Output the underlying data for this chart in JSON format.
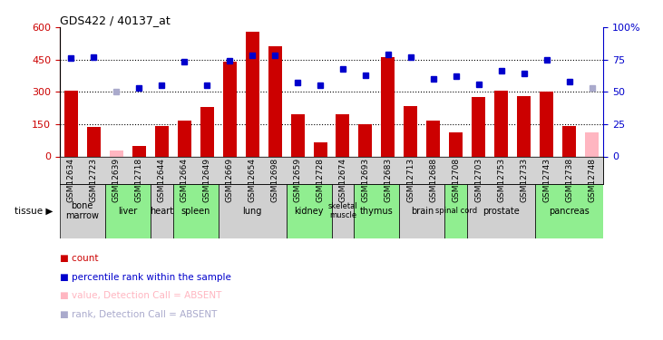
{
  "title": "GDS422 / 40137_at",
  "samples": [
    "GSM12634",
    "GSM12723",
    "GSM12639",
    "GSM12718",
    "GSM12644",
    "GSM12664",
    "GSM12649",
    "GSM12669",
    "GSM12654",
    "GSM12698",
    "GSM12659",
    "GSM12728",
    "GSM12674",
    "GSM12693",
    "GSM12683",
    "GSM12713",
    "GSM12688",
    "GSM12708",
    "GSM12703",
    "GSM12753",
    "GSM12733",
    "GSM12743",
    "GSM12738",
    "GSM12748"
  ],
  "bar_values": [
    305,
    135,
    28,
    48,
    140,
    165,
    230,
    440,
    580,
    510,
    195,
    65,
    195,
    150,
    460,
    235,
    165,
    110,
    275,
    305,
    280,
    300,
    140,
    110
  ],
  "bar_absent": [
    false,
    false,
    true,
    false,
    false,
    false,
    false,
    false,
    false,
    false,
    false,
    false,
    false,
    false,
    false,
    false,
    false,
    false,
    false,
    false,
    false,
    false,
    false,
    true
  ],
  "rank_values": [
    76,
    77,
    50,
    53,
    55,
    73,
    55,
    74,
    78,
    78,
    57,
    55,
    68,
    63,
    79,
    77,
    60,
    62,
    56,
    66,
    64,
    75,
    58,
    53
  ],
  "rank_absent": [
    false,
    false,
    true,
    false,
    false,
    false,
    false,
    false,
    false,
    false,
    false,
    false,
    false,
    false,
    false,
    false,
    false,
    false,
    false,
    false,
    false,
    false,
    false,
    true
  ],
  "tissues": [
    {
      "name": "bone\nmarrow",
      "start": 0,
      "end": 2,
      "color": "#d0d0d0"
    },
    {
      "name": "liver",
      "start": 2,
      "end": 4,
      "color": "#90ee90"
    },
    {
      "name": "heart",
      "start": 4,
      "end": 5,
      "color": "#d0d0d0"
    },
    {
      "name": "spleen",
      "start": 5,
      "end": 7,
      "color": "#90ee90"
    },
    {
      "name": "lung",
      "start": 7,
      "end": 10,
      "color": "#d0d0d0"
    },
    {
      "name": "kidney",
      "start": 10,
      "end": 12,
      "color": "#90ee90"
    },
    {
      "name": "skeletal\nmuscle",
      "start": 12,
      "end": 13,
      "color": "#d0d0d0"
    },
    {
      "name": "thymus",
      "start": 13,
      "end": 15,
      "color": "#90ee90"
    },
    {
      "name": "brain",
      "start": 15,
      "end": 17,
      "color": "#d0d0d0"
    },
    {
      "name": "spinal cord",
      "start": 17,
      "end": 18,
      "color": "#90ee90"
    },
    {
      "name": "prostate",
      "start": 18,
      "end": 21,
      "color": "#d0d0d0"
    },
    {
      "name": "pancreas",
      "start": 21,
      "end": 24,
      "color": "#90ee90"
    }
  ],
  "ylim_left": [
    0,
    600
  ],
  "ylim_right": [
    0,
    100
  ],
  "yticks_left": [
    0,
    150,
    300,
    450,
    600
  ],
  "yticks_right": [
    0,
    25,
    50,
    75,
    100
  ],
  "bar_color": "#cc0000",
  "absent_bar_color": "#ffb6c1",
  "rank_color": "#0000cc",
  "absent_rank_color": "#aaaacc",
  "sample_bg_color": "#d3d3d3",
  "legend": [
    {
      "color": "#cc0000",
      "label": "count"
    },
    {
      "color": "#0000cc",
      "label": "percentile rank within the sample"
    },
    {
      "color": "#ffb6c1",
      "label": "value, Detection Call = ABSENT"
    },
    {
      "color": "#aaaacc",
      "label": "rank, Detection Call = ABSENT"
    }
  ]
}
